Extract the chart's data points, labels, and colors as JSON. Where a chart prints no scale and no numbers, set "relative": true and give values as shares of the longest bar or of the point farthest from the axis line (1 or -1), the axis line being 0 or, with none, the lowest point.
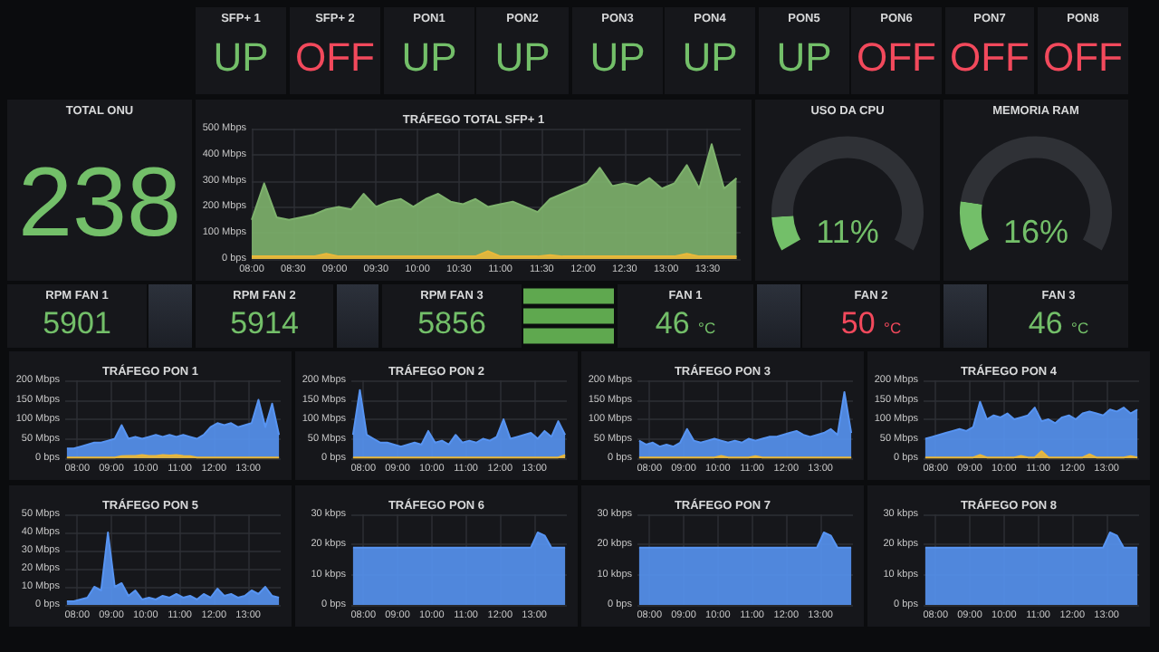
{
  "chart_data": [
    {
      "type": "other",
      "title": "SFP+ 1",
      "annotations": [
        "UP"
      ],
      "color": "#73bf69"
    },
    {
      "type": "other",
      "title": "SFP+ 2",
      "annotations": [
        "OFF"
      ],
      "color": "#f2495c"
    },
    {
      "type": "other",
      "title": "PON1",
      "annotations": [
        "UP"
      ],
      "color": "#73bf69"
    },
    {
      "type": "other",
      "title": "PON2",
      "annotations": [
        "UP"
      ],
      "color": "#73bf69"
    },
    {
      "type": "other",
      "title": "PON3",
      "annotations": [
        "UP"
      ],
      "color": "#73bf69"
    },
    {
      "type": "other",
      "title": "PON4",
      "annotations": [
        "UP"
      ],
      "color": "#73bf69"
    },
    {
      "type": "other",
      "title": "PON5",
      "annotations": [
        "UP"
      ],
      "color": "#73bf69"
    },
    {
      "type": "other",
      "title": "PON6",
      "annotations": [
        "OFF"
      ],
      "color": "#f2495c"
    },
    {
      "type": "other",
      "title": "PON7",
      "annotations": [
        "OFF"
      ],
      "color": "#f2495c"
    },
    {
      "type": "other",
      "title": "PON8",
      "annotations": [
        "OFF"
      ],
      "color": "#f2495c"
    },
    {
      "type": "other",
      "title": "TOTAL ONU",
      "annotations": [
        "238"
      ],
      "color": "#73bf69"
    },
    {
      "type": "area",
      "title": "TRÁFEGO TOTAL SFP+ 1",
      "grid": true,
      "xlim": [
        8,
        13.9
      ],
      "ylim": [
        0,
        500
      ],
      "xticks": [
        {
          "value": 8,
          "label": "08:00"
        },
        {
          "value": 8.5,
          "label": "08:30"
        },
        {
          "value": 9,
          "label": "09:00"
        },
        {
          "value": 9.5,
          "label": "09:30"
        },
        {
          "value": 10,
          "label": "10:00"
        },
        {
          "value": 10.5,
          "label": "10:30"
        },
        {
          "value": 11,
          "label": "11:00"
        },
        {
          "value": 11.5,
          "label": "11:30"
        },
        {
          "value": 12,
          "label": "12:00"
        },
        {
          "value": 12.5,
          "label": "12:30"
        },
        {
          "value": 13,
          "label": "13:00"
        },
        {
          "value": 13.5,
          "label": "13:30"
        }
      ],
      "yticks": [
        {
          "value": 0,
          "label": "0 bps"
        },
        {
          "value": 100,
          "label": "100 Mbps"
        },
        {
          "value": 200,
          "label": "200 Mbps"
        },
        {
          "value": 300,
          "label": "300 Mbps"
        },
        {
          "value": 400,
          "label": "400 Mbps"
        },
        {
          "value": 500,
          "label": "500 Mbps"
        }
      ],
      "x": [
        8,
        8.15,
        8.3,
        8.45,
        8.6,
        8.75,
        8.9,
        9.05,
        9.2,
        9.35,
        9.5,
        9.65,
        9.8,
        9.95,
        10.1,
        10.25,
        10.4,
        10.55,
        10.7,
        10.85,
        11,
        11.15,
        11.3,
        11.45,
        11.6,
        11.75,
        11.9,
        12.05,
        12.2,
        12.35,
        12.5,
        12.65,
        12.8,
        12.95,
        13.1,
        13.25,
        13.4,
        13.55,
        13.7,
        13.85
      ],
      "series": [
        {
          "color": "#7eb26d",
          "values": [
            150,
            290,
            160,
            150,
            160,
            170,
            190,
            200,
            190,
            250,
            200,
            220,
            230,
            200,
            230,
            250,
            220,
            210,
            230,
            200,
            210,
            220,
            200,
            180,
            230,
            250,
            270,
            290,
            350,
            280,
            290,
            280,
            310,
            270,
            290,
            360,
            270,
            440,
            270,
            310
          ]
        },
        {
          "color": "#eab839",
          "values": [
            10,
            10,
            10,
            10,
            10,
            10,
            20,
            10,
            10,
            10,
            10,
            10,
            10,
            10,
            10,
            10,
            10,
            10,
            10,
            30,
            10,
            10,
            10,
            10,
            15,
            10,
            10,
            10,
            10,
            10,
            10,
            10,
            10,
            10,
            10,
            20,
            10,
            10,
            10,
            10
          ]
        }
      ]
    },
    {
      "type": "donut",
      "title": "USO DA CPU",
      "categories": [
        null,
        null
      ],
      "values": [
        11,
        89
      ],
      "colors": [
        "#73bf69",
        "#2f3136"
      ],
      "annotations": [
        "11%"
      ]
    },
    {
      "type": "donut",
      "title": "MEMORIA RAM",
      "categories": [
        null,
        null
      ],
      "values": [
        16,
        84
      ],
      "colors": [
        "#73bf69",
        "#2f3136"
      ],
      "annotations": [
        "16%"
      ]
    },
    {
      "type": "other",
      "title": "RPM FAN 1",
      "annotations": [
        "5901"
      ],
      "color": "#73bf69"
    },
    {
      "type": "other",
      "title": "RPM FAN 2",
      "annotations": [
        "5914"
      ],
      "color": "#73bf69"
    },
    {
      "type": "other",
      "title": "RPM FAN 3",
      "annotations": [
        "5856"
      ],
      "color": "#73bf69"
    },
    {
      "type": "bar",
      "orientation": "horizontal",
      "relative": true,
      "categories": [
        null,
        null,
        null
      ],
      "values": [
        1,
        1,
        1
      ],
      "color": "#5fa84f"
    },
    {
      "type": "other",
      "title": "FAN 1",
      "annotations": [
        "46 °C"
      ],
      "color": "#73bf69"
    },
    {
      "type": "other",
      "title": "FAN 2",
      "annotations": [
        "50 °C"
      ],
      "color": "#f2495c"
    },
    {
      "type": "other",
      "title": "FAN 3",
      "annotations": [
        "46 °C"
      ],
      "color": "#73bf69"
    },
    {
      "type": "area",
      "title": "TRÁFEGO PON 1",
      "grid": true,
      "xlim": [
        7.65,
        13.95
      ],
      "ylim": [
        0,
        200
      ],
      "xticks": [
        {
          "value": 8,
          "label": "08:00"
        },
        {
          "value": 9,
          "label": "09:00"
        },
        {
          "value": 10,
          "label": "10:00"
        },
        {
          "value": 11,
          "label": "11:00"
        },
        {
          "value": 12,
          "label": "12:00"
        },
        {
          "value": 13,
          "label": "13:00"
        }
      ],
      "yticks": [
        {
          "value": 0,
          "label": "0 bps"
        },
        {
          "value": 50,
          "label": "50 Mbps"
        },
        {
          "value": 100,
          "label": "100 Mbps"
        },
        {
          "value": 150,
          "label": "150 Mbps"
        },
        {
          "value": 200,
          "label": "200 Mbps"
        }
      ],
      "x": [
        7.7,
        7.9,
        8.1,
        8.3,
        8.5,
        8.7,
        8.9,
        9.1,
        9.3,
        9.5,
        9.7,
        9.9,
        10.1,
        10.3,
        10.5,
        10.7,
        10.9,
        11.1,
        11.3,
        11.5,
        11.7,
        11.9,
        12.1,
        12.3,
        12.5,
        12.7,
        12.9,
        13.1,
        13.3,
        13.5,
        13.7,
        13.9
      ],
      "series": [
        {
          "color": "#5794f2",
          "values": [
            25,
            25,
            30,
            35,
            40,
            40,
            45,
            50,
            85,
            50,
            55,
            50,
            55,
            60,
            55,
            60,
            55,
            60,
            55,
            50,
            60,
            80,
            90,
            85,
            90,
            80,
            85,
            90,
            150,
            80,
            140,
            60
          ]
        },
        {
          "color": "#eab839",
          "values": [
            2,
            2,
            2,
            2,
            2,
            2,
            2,
            2,
            5,
            6,
            6,
            8,
            6,
            6,
            8,
            7,
            8,
            6,
            5,
            2,
            2,
            2,
            2,
            2,
            2,
            2,
            2,
            2,
            2,
            2,
            2,
            2
          ]
        }
      ]
    },
    {
      "type": "area",
      "title": "TRÁFEGO PON 2",
      "grid": true,
      "xlim": [
        7.65,
        13.95
      ],
      "ylim": [
        0,
        200
      ],
      "xticks": [
        {
          "value": 8,
          "label": "08:00"
        },
        {
          "value": 9,
          "label": "09:00"
        },
        {
          "value": 10,
          "label": "10:00"
        },
        {
          "value": 11,
          "label": "11:00"
        },
        {
          "value": 12,
          "label": "12:00"
        },
        {
          "value": 13,
          "label": "13:00"
        }
      ],
      "yticks": [
        {
          "value": 0,
          "label": "0 bps"
        },
        {
          "value": 50,
          "label": "50 Mbps"
        },
        {
          "value": 100,
          "label": "100 Mbps"
        },
        {
          "value": 150,
          "label": "150 Mbps"
        },
        {
          "value": 200,
          "label": "200 Mbps"
        }
      ],
      "x": [
        7.7,
        7.9,
        8.1,
        8.3,
        8.5,
        8.7,
        8.9,
        9.1,
        9.3,
        9.5,
        9.7,
        9.9,
        10.1,
        10.3,
        10.5,
        10.7,
        10.9,
        11.1,
        11.3,
        11.5,
        11.7,
        11.9,
        12.1,
        12.3,
        12.5,
        12.7,
        12.9,
        13.1,
        13.3,
        13.5,
        13.7,
        13.9
      ],
      "series": [
        {
          "color": "#5794f2",
          "values": [
            60,
            175,
            60,
            50,
            40,
            40,
            35,
            30,
            35,
            40,
            35,
            70,
            40,
            45,
            35,
            60,
            40,
            45,
            40,
            50,
            45,
            55,
            100,
            50,
            55,
            60,
            65,
            50,
            70,
            55,
            95,
            60
          ]
        },
        {
          "color": "#eab839",
          "values": [
            2,
            2,
            2,
            2,
            2,
            2,
            2,
            2,
            2,
            2,
            2,
            2,
            2,
            2,
            2,
            2,
            2,
            2,
            2,
            2,
            2,
            2,
            2,
            2,
            2,
            2,
            2,
            2,
            2,
            2,
            2,
            8
          ]
        }
      ]
    },
    {
      "type": "area",
      "title": "TRÁFEGO PON 3",
      "grid": true,
      "xlim": [
        7.65,
        13.95
      ],
      "ylim": [
        0,
        200
      ],
      "xticks": [
        {
          "value": 8,
          "label": "08:00"
        },
        {
          "value": 9,
          "label": "09:00"
        },
        {
          "value": 10,
          "label": "10:00"
        },
        {
          "value": 11,
          "label": "11:00"
        },
        {
          "value": 12,
          "label": "12:00"
        },
        {
          "value": 13,
          "label": "13:00"
        }
      ],
      "yticks": [
        {
          "value": 0,
          "label": "0 bps"
        },
        {
          "value": 50,
          "label": "50 Mbps"
        },
        {
          "value": 100,
          "label": "100 Mbps"
        },
        {
          "value": 150,
          "label": "150 Mbps"
        },
        {
          "value": 200,
          "label": "200 Mbps"
        }
      ],
      "x": [
        7.7,
        7.9,
        8.1,
        8.3,
        8.5,
        8.7,
        8.9,
        9.1,
        9.3,
        9.5,
        9.7,
        9.9,
        10.1,
        10.3,
        10.5,
        10.7,
        10.9,
        11.1,
        11.3,
        11.5,
        11.7,
        11.9,
        12.1,
        12.3,
        12.5,
        12.7,
        12.9,
        13.1,
        13.3,
        13.5,
        13.7,
        13.9
      ],
      "series": [
        {
          "color": "#5794f2",
          "values": [
            45,
            35,
            40,
            30,
            35,
            30,
            40,
            75,
            45,
            40,
            45,
            50,
            45,
            40,
            45,
            40,
            50,
            45,
            50,
            55,
            55,
            60,
            65,
            70,
            60,
            55,
            60,
            65,
            75,
            60,
            170,
            65
          ]
        },
        {
          "color": "#eab839",
          "values": [
            2,
            2,
            2,
            2,
            2,
            2,
            2,
            2,
            2,
            2,
            2,
            2,
            6,
            2,
            2,
            2,
            2,
            5,
            2,
            2,
            2,
            2,
            2,
            2,
            2,
            2,
            2,
            2,
            2,
            2,
            2,
            2
          ]
        }
      ]
    },
    {
      "type": "area",
      "title": "TRÁFEGO PON 4",
      "grid": true,
      "xlim": [
        7.65,
        13.95
      ],
      "ylim": [
        0,
        200
      ],
      "xticks": [
        {
          "value": 8,
          "label": "08:00"
        },
        {
          "value": 9,
          "label": "09:00"
        },
        {
          "value": 10,
          "label": "10:00"
        },
        {
          "value": 11,
          "label": "11:00"
        },
        {
          "value": 12,
          "label": "12:00"
        },
        {
          "value": 13,
          "label": "13:00"
        }
      ],
      "yticks": [
        {
          "value": 0,
          "label": "0 bps"
        },
        {
          "value": 50,
          "label": "50 Mbps"
        },
        {
          "value": 100,
          "label": "100 Mbps"
        },
        {
          "value": 150,
          "label": "150 Mbps"
        },
        {
          "value": 200,
          "label": "200 Mbps"
        }
      ],
      "x": [
        7.7,
        7.9,
        8.1,
        8.3,
        8.5,
        8.7,
        8.9,
        9.1,
        9.3,
        9.5,
        9.7,
        9.9,
        10.1,
        10.3,
        10.5,
        10.7,
        10.9,
        11.1,
        11.3,
        11.5,
        11.7,
        11.9,
        12.1,
        12.3,
        12.5,
        12.7,
        12.9,
        13.1,
        13.3,
        13.5,
        13.7,
        13.9
      ],
      "series": [
        {
          "color": "#5794f2",
          "values": [
            50,
            55,
            60,
            65,
            70,
            75,
            70,
            80,
            145,
            100,
            110,
            105,
            115,
            100,
            105,
            110,
            130,
            95,
            100,
            90,
            105,
            110,
            100,
            115,
            120,
            115,
            110,
            125,
            120,
            130,
            115,
            125
          ]
        },
        {
          "color": "#eab839",
          "values": [
            2,
            2,
            2,
            2,
            2,
            2,
            2,
            2,
            8,
            2,
            2,
            2,
            2,
            2,
            6,
            2,
            2,
            18,
            2,
            2,
            2,
            2,
            2,
            2,
            10,
            2,
            2,
            2,
            2,
            2,
            5,
            2
          ]
        }
      ]
    },
    {
      "type": "area",
      "title": "TRÁFEGO PON 5",
      "grid": true,
      "xlim": [
        7.65,
        13.95
      ],
      "ylim": [
        0,
        50
      ],
      "xticks": [
        {
          "value": 8,
          "label": "08:00"
        },
        {
          "value": 9,
          "label": "09:00"
        },
        {
          "value": 10,
          "label": "10:00"
        },
        {
          "value": 11,
          "label": "11:00"
        },
        {
          "value": 12,
          "label": "12:00"
        },
        {
          "value": 13,
          "label": "13:00"
        }
      ],
      "yticks": [
        {
          "value": 0,
          "label": "0 bps"
        },
        {
          "value": 10,
          "label": "10 Mbps"
        },
        {
          "value": 20,
          "label": "20 Mbps"
        },
        {
          "value": 30,
          "label": "30 Mbps"
        },
        {
          "value": 40,
          "label": "40 Mbps"
        },
        {
          "value": 50,
          "label": "50 Mbps"
        }
      ],
      "x": [
        7.7,
        7.9,
        8.1,
        8.3,
        8.5,
        8.7,
        8.9,
        9.1,
        9.3,
        9.5,
        9.7,
        9.9,
        10.1,
        10.3,
        10.5,
        10.7,
        10.9,
        11.1,
        11.3,
        11.5,
        11.7,
        11.9,
        12.1,
        12.3,
        12.5,
        12.7,
        12.9,
        13.1,
        13.3,
        13.5,
        13.7,
        13.9
      ],
      "series": [
        {
          "color": "#5794f2",
          "values": [
            2,
            2,
            3,
            4,
            10,
            8,
            40,
            10,
            12,
            5,
            8,
            3,
            4,
            3,
            5,
            4,
            6,
            4,
            5,
            3,
            6,
            4,
            9,
            5,
            6,
            4,
            5,
            8,
            6,
            10,
            5,
            4
          ]
        }
      ]
    },
    {
      "type": "area",
      "title": "TRÁFEGO PON 6",
      "grid": true,
      "xlim": [
        7.65,
        13.95
      ],
      "ylim": [
        0,
        30
      ],
      "xticks": [
        {
          "value": 8,
          "label": "08:00"
        },
        {
          "value": 9,
          "label": "09:00"
        },
        {
          "value": 10,
          "label": "10:00"
        },
        {
          "value": 11,
          "label": "11:00"
        },
        {
          "value": 12,
          "label": "12:00"
        },
        {
          "value": 13,
          "label": "13:00"
        }
      ],
      "yticks": [
        {
          "value": 0,
          "label": "0 bps"
        },
        {
          "value": 10,
          "label": "10 kbps"
        },
        {
          "value": 20,
          "label": "20 kbps"
        },
        {
          "value": 30,
          "label": "30 kbps"
        }
      ],
      "x": [
        7.7,
        7.9,
        8.1,
        8.3,
        8.5,
        8.7,
        8.9,
        9.1,
        9.3,
        9.5,
        9.7,
        9.9,
        10.1,
        10.3,
        10.5,
        10.7,
        10.9,
        11.1,
        11.3,
        11.5,
        11.7,
        11.9,
        12.1,
        12.3,
        12.5,
        12.7,
        12.9,
        13.1,
        13.3,
        13.5,
        13.7,
        13.9
      ],
      "series": [
        {
          "color": "#5794f2",
          "values": [
            19,
            19,
            19,
            19,
            19,
            19,
            19,
            19,
            19,
            19,
            19,
            19,
            19,
            19,
            19,
            19,
            19,
            19,
            19,
            19,
            19,
            19,
            19,
            19,
            19,
            19,
            19,
            24,
            23,
            19,
            19,
            19
          ]
        }
      ]
    },
    {
      "type": "area",
      "title": "TRÁFEGO PON 7",
      "grid": true,
      "xlim": [
        7.65,
        13.95
      ],
      "ylim": [
        0,
        30
      ],
      "xticks": [
        {
          "value": 8,
          "label": "08:00"
        },
        {
          "value": 9,
          "label": "09:00"
        },
        {
          "value": 10,
          "label": "10:00"
        },
        {
          "value": 11,
          "label": "11:00"
        },
        {
          "value": 12,
          "label": "12:00"
        },
        {
          "value": 13,
          "label": "13:00"
        }
      ],
      "yticks": [
        {
          "value": 0,
          "label": "0 bps"
        },
        {
          "value": 10,
          "label": "10 kbps"
        },
        {
          "value": 20,
          "label": "20 kbps"
        },
        {
          "value": 30,
          "label": "30 kbps"
        }
      ],
      "x": [
        7.7,
        7.9,
        8.1,
        8.3,
        8.5,
        8.7,
        8.9,
        9.1,
        9.3,
        9.5,
        9.7,
        9.9,
        10.1,
        10.3,
        10.5,
        10.7,
        10.9,
        11.1,
        11.3,
        11.5,
        11.7,
        11.9,
        12.1,
        12.3,
        12.5,
        12.7,
        12.9,
        13.1,
        13.3,
        13.5,
        13.7,
        13.9
      ],
      "series": [
        {
          "color": "#5794f2",
          "values": [
            19,
            19,
            19,
            19,
            19,
            19,
            19,
            19,
            19,
            19,
            19,
            19,
            19,
            19,
            19,
            19,
            19,
            19,
            19,
            19,
            19,
            19,
            19,
            19,
            19,
            19,
            19,
            24,
            23,
            19,
            19,
            19
          ]
        }
      ]
    },
    {
      "type": "area",
      "title": "TRÁFEGO PON 8",
      "grid": true,
      "xlim": [
        7.65,
        13.95
      ],
      "ylim": [
        0,
        30
      ],
      "xticks": [
        {
          "value": 8,
          "label": "08:00"
        },
        {
          "value": 9,
          "label": "09:00"
        },
        {
          "value": 10,
          "label": "10:00"
        },
        {
          "value": 11,
          "label": "11:00"
        },
        {
          "value": 12,
          "label": "12:00"
        },
        {
          "value": 13,
          "label": "13:00"
        }
      ],
      "yticks": [
        {
          "value": 0,
          "label": "0 bps"
        },
        {
          "value": 10,
          "label": "10 kbps"
        },
        {
          "value": 20,
          "label": "20 kbps"
        },
        {
          "value": 30,
          "label": "30 kbps"
        }
      ],
      "x": [
        7.7,
        7.9,
        8.1,
        8.3,
        8.5,
        8.7,
        8.9,
        9.1,
        9.3,
        9.5,
        9.7,
        9.9,
        10.1,
        10.3,
        10.5,
        10.7,
        10.9,
        11.1,
        11.3,
        11.5,
        11.7,
        11.9,
        12.1,
        12.3,
        12.5,
        12.7,
        12.9,
        13.1,
        13.3,
        13.5,
        13.7,
        13.9
      ],
      "series": [
        {
          "color": "#5794f2",
          "values": [
            19,
            19,
            19,
            19,
            19,
            19,
            19,
            19,
            19,
            19,
            19,
            19,
            19,
            19,
            19,
            19,
            19,
            19,
            19,
            19,
            19,
            19,
            19,
            19,
            19,
            19,
            19,
            24,
            23,
            19,
            19,
            19
          ]
        }
      ]
    }
  ]
}
